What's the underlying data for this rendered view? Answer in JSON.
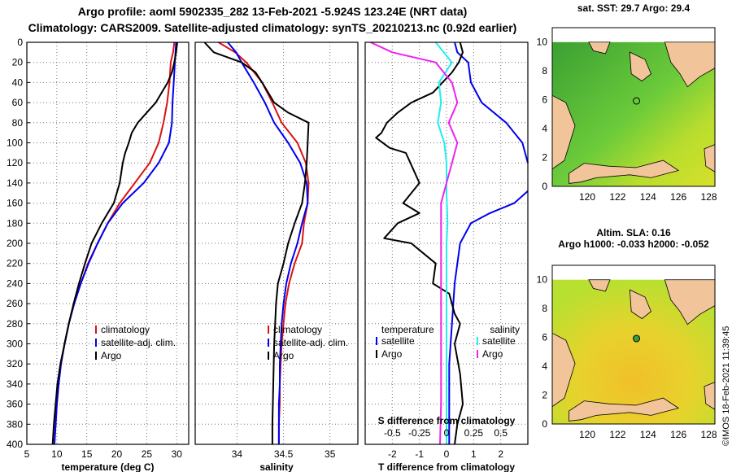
{
  "header": {
    "title_line1": "Argo profile: aoml 5902335_282 13-Feb-2021 -5.924S 123.24E (NRT data)",
    "title_line2": "Climatology: CARS2009. Satellite-adjusted climatology: synTS_20210213.nc (0.92d earlier)"
  },
  "colors": {
    "climatology": "#dd1111",
    "satellite": "#0000ee",
    "argo": "#000000",
    "sat_salinity": "#22eeee",
    "argo_salinity": "#ee22ee"
  },
  "chart_data": [
    {
      "type": "line",
      "title": "",
      "xlabel": "temperature (deg C)",
      "ylabel": "",
      "xlim": [
        5,
        32
      ],
      "ylim": [
        400,
        0
      ],
      "xticks": [
        "5",
        "10",
        "15",
        "20",
        "25",
        "30"
      ],
      "yticks": [
        "0",
        "20",
        "40",
        "60",
        "80",
        "100",
        "120",
        "140",
        "160",
        "180",
        "200",
        "220",
        "240",
        "260",
        "280",
        "300",
        "320",
        "340",
        "360",
        "380",
        "400"
      ],
      "legend": [
        "climatology",
        "satellite-adj. clim.",
        "Argo"
      ],
      "legend_position": "lower-right",
      "series": [
        {
          "name": "climatology",
          "points": [
            [
              29.6,
              0
            ],
            [
              29.4,
              10
            ],
            [
              29,
              20
            ],
            [
              28.8,
              40
            ],
            [
              28.4,
              60
            ],
            [
              27.8,
              80
            ],
            [
              27,
              100
            ],
            [
              25.5,
              120
            ],
            [
              23,
              140
            ],
            [
              20.5,
              160
            ],
            [
              18.5,
              180
            ],
            [
              16.8,
              200
            ],
            [
              15.2,
              220
            ],
            [
              14,
              240
            ],
            [
              12.9,
              260
            ],
            [
              12,
              280
            ],
            [
              11.3,
              300
            ],
            [
              10.7,
              320
            ],
            [
              10.3,
              340
            ],
            [
              10,
              360
            ],
            [
              9.8,
              380
            ],
            [
              9.6,
              400
            ]
          ]
        },
        {
          "name": "satellite-adj. clim.",
          "points": [
            [
              29.9,
              0
            ],
            [
              29.7,
              20
            ],
            [
              29.5,
              40
            ],
            [
              29.3,
              60
            ],
            [
              29.2,
              80
            ],
            [
              28.7,
              100
            ],
            [
              27,
              120
            ],
            [
              24.5,
              140
            ],
            [
              21,
              160
            ],
            [
              18.5,
              180
            ],
            [
              16.8,
              200
            ],
            [
              15.3,
              220
            ],
            [
              14,
              240
            ],
            [
              12.9,
              260
            ],
            [
              12,
              280
            ],
            [
              11.3,
              300
            ],
            [
              10.7,
              320
            ],
            [
              10.3,
              340
            ],
            [
              10,
              360
            ],
            [
              9.8,
              380
            ],
            [
              9.6,
              400
            ]
          ]
        },
        {
          "name": "Argo",
          "points": [
            [
              30.1,
              0
            ],
            [
              29.9,
              10
            ],
            [
              29.6,
              20
            ],
            [
              29.2,
              30
            ],
            [
              28.5,
              40
            ],
            [
              27.5,
              50
            ],
            [
              26.5,
              60
            ],
            [
              25,
              70
            ],
            [
              23.5,
              80
            ],
            [
              22.5,
              90
            ],
            [
              22,
              100
            ],
            [
              21.4,
              110
            ],
            [
              21,
              120
            ],
            [
              20.5,
              140
            ],
            [
              19.5,
              160
            ],
            [
              17.5,
              180
            ],
            [
              15.8,
              200
            ],
            [
              14.7,
              220
            ],
            [
              13.7,
              240
            ],
            [
              12.8,
              260
            ],
            [
              12,
              280
            ],
            [
              11.3,
              300
            ],
            [
              10.6,
              320
            ],
            [
              10.1,
              340
            ],
            [
              9.8,
              360
            ],
            [
              9.5,
              380
            ],
            [
              9.3,
              400
            ]
          ]
        }
      ]
    },
    {
      "type": "line",
      "title": "",
      "xlabel": "salinity",
      "ylabel": "",
      "xlim": [
        33.55,
        35.3
      ],
      "ylim": [
        400,
        0
      ],
      "xticks": [
        "34",
        "34.5",
        "35"
      ],
      "legend": [
        "climatology",
        "satellite-adj. clim.",
        "Argo"
      ],
      "legend_position": "lower-right",
      "series": [
        {
          "name": "climatology",
          "points": [
            [
              33.8,
              0
            ],
            [
              33.98,
              10
            ],
            [
              34.1,
              20
            ],
            [
              34.27,
              40
            ],
            [
              34.38,
              60
            ],
            [
              34.48,
              80
            ],
            [
              34.65,
              100
            ],
            [
              34.74,
              120
            ],
            [
              34.77,
              140
            ],
            [
              34.76,
              160
            ],
            [
              34.72,
              180
            ],
            [
              34.7,
              200
            ],
            [
              34.62,
              220
            ],
            [
              34.56,
              240
            ],
            [
              34.52,
              260
            ],
            [
              34.5,
              280
            ],
            [
              34.48,
              300
            ],
            [
              34.47,
              320
            ],
            [
              34.46,
              340
            ],
            [
              34.46,
              360
            ],
            [
              34.45,
              380
            ],
            [
              34.45,
              400
            ]
          ]
        },
        {
          "name": "satellite-adj. clim.",
          "points": [
            [
              33.9,
              0
            ],
            [
              33.99,
              10
            ],
            [
              34.05,
              20
            ],
            [
              34.18,
              40
            ],
            [
              34.3,
              60
            ],
            [
              34.4,
              80
            ],
            [
              34.55,
              100
            ],
            [
              34.68,
              120
            ],
            [
              34.75,
              140
            ],
            [
              34.76,
              160
            ],
            [
              34.7,
              180
            ],
            [
              34.65,
              200
            ],
            [
              34.58,
              220
            ],
            [
              34.53,
              240
            ],
            [
              34.5,
              260
            ],
            [
              34.48,
              280
            ],
            [
              34.47,
              300
            ],
            [
              34.46,
              320
            ],
            [
              34.46,
              340
            ],
            [
              34.45,
              360
            ],
            [
              34.45,
              380
            ],
            [
              34.45,
              400
            ]
          ]
        },
        {
          "name": "Argo",
          "points": [
            [
              33.65,
              0
            ],
            [
              33.75,
              10
            ],
            [
              34.05,
              20
            ],
            [
              34.2,
              30
            ],
            [
              34.27,
              40
            ],
            [
              34.4,
              60
            ],
            [
              34.55,
              70
            ],
            [
              34.77,
              80
            ],
            [
              34.76,
              100
            ],
            [
              34.75,
              120
            ],
            [
              34.73,
              140
            ],
            [
              34.7,
              160
            ],
            [
              34.62,
              180
            ],
            [
              34.55,
              200
            ],
            [
              34.5,
              220
            ],
            [
              34.44,
              240
            ],
            [
              34.42,
              260
            ],
            [
              34.41,
              280
            ],
            [
              34.4,
              300
            ],
            [
              34.39,
              340
            ],
            [
              34.38,
              380
            ],
            [
              34.38,
              400
            ]
          ]
        }
      ]
    },
    {
      "type": "line",
      "title": "",
      "xlabel": "T difference from climatology",
      "ylabel": "",
      "xlim": [
        -3,
        3
      ],
      "ylim": [
        400,
        0
      ],
      "xticks": [
        "-2",
        "-1",
        "0",
        "1",
        "2"
      ],
      "x2label": "S difference from climatology",
      "x2lim": [
        -0.75,
        0.75
      ],
      "x2ticks": [
        "-0.5",
        "-0.25",
        "0",
        "0.25",
        "0.5"
      ],
      "legend": [
        "temperature",
        "satellite",
        "Argo",
        "salinity",
        "satellite",
        "Argo"
      ],
      "legend_position": "bottom",
      "series": [
        {
          "name": "temperature satellite",
          "points": [
            [
              0.3,
              0
            ],
            [
              0.4,
              10
            ],
            [
              0.8,
              20
            ],
            [
              0.9,
              40
            ],
            [
              1.3,
              60
            ],
            [
              2.2,
              80
            ],
            [
              2.8,
              100
            ],
            [
              3,
              120
            ]
          ]
        },
        {
          "name": "temperature satellite",
          "points": [
            [
              3,
              148
            ],
            [
              2.5,
              160
            ],
            [
              1.6,
              170
            ],
            [
              0.9,
              180
            ],
            [
              0.5,
              200
            ],
            [
              0.3,
              240
            ],
            [
              0.2,
              280
            ],
            [
              0.1,
              320
            ],
            [
              0.1,
              360
            ],
            [
              0.1,
              400
            ]
          ]
        },
        {
          "name": "temperature Argo",
          "points": [
            [
              0.5,
              0
            ],
            [
              0.6,
              10
            ],
            [
              0.45,
              20
            ],
            [
              0.2,
              30
            ],
            [
              -0.5,
              50
            ],
            [
              -1.3,
              60
            ],
            [
              -1.8,
              70
            ],
            [
              -2.2,
              80
            ],
            [
              -2.4,
              90
            ],
            [
              -2.6,
              95
            ],
            [
              -2.1,
              105
            ],
            [
              -1.5,
              110
            ],
            [
              -1,
              140
            ],
            [
              -1.6,
              160
            ],
            [
              -1,
              170
            ],
            [
              -1.8,
              180
            ],
            [
              -2.3,
              195
            ],
            [
              -1.3,
              200
            ],
            [
              -0.4,
              220
            ],
            [
              -0.5,
              240
            ],
            [
              0.1,
              250
            ],
            [
              0.3,
              270
            ],
            [
              0.5,
              280
            ],
            [
              0.3,
              300
            ],
            [
              0.5,
              330
            ],
            [
              0.6,
              360
            ],
            [
              0.4,
              380
            ],
            [
              0.3,
              400
            ]
          ]
        },
        {
          "name": "salinity satellite",
          "points": [
            [
              -0.1,
              0
            ],
            [
              0.05,
              20
            ],
            [
              -0.07,
              40
            ],
            [
              -0.05,
              60
            ],
            [
              -0.08,
              80
            ],
            [
              -0.02,
              100
            ],
            [
              0,
              120
            ],
            [
              0,
              150
            ],
            [
              0.01,
              180
            ],
            [
              0,
              200
            ],
            [
              0,
              240
            ],
            [
              0,
              280
            ],
            [
              0,
              320
            ],
            [
              0,
              360
            ],
            [
              0,
              400
            ]
          ]
        },
        {
          "name": "salinity Argo",
          "points": [
            [
              -0.7,
              0
            ],
            [
              -0.5,
              10
            ],
            [
              -0.1,
              20
            ],
            [
              0.05,
              40
            ],
            [
              0.1,
              60
            ],
            [
              0.02,
              80
            ],
            [
              0.1,
              100
            ],
            [
              0.05,
              120
            ],
            [
              0,
              140
            ],
            [
              -0.05,
              160
            ],
            [
              -0.05,
              180
            ],
            [
              -0.05,
              200
            ],
            [
              -0.05,
              240
            ],
            [
              -0.05,
              280
            ],
            [
              -0.05,
              320
            ],
            [
              -0.05,
              360
            ],
            [
              -0.06,
              400
            ]
          ]
        }
      ]
    }
  ],
  "maps": {
    "sst": {
      "title": "sat. SST: 29.7 Argo: 29.4",
      "xticks": [
        "120",
        "122",
        "124",
        "126",
        "128"
      ],
      "yticks": [
        "0",
        "2",
        "4",
        "6",
        "8",
        "10"
      ]
    },
    "sla": {
      "title_line1": "Altim. SLA: 0.16",
      "title_line2": "Argo h1000: -0.033 h2000: -0.052",
      "xticks": [
        "120",
        "122",
        "124",
        "126",
        "128"
      ],
      "yticks": [
        "0",
        "2",
        "4",
        "6",
        "8",
        "10"
      ]
    }
  },
  "footer": {
    "credit": "©IMOS 18-Feb-2021 11:39:45"
  }
}
